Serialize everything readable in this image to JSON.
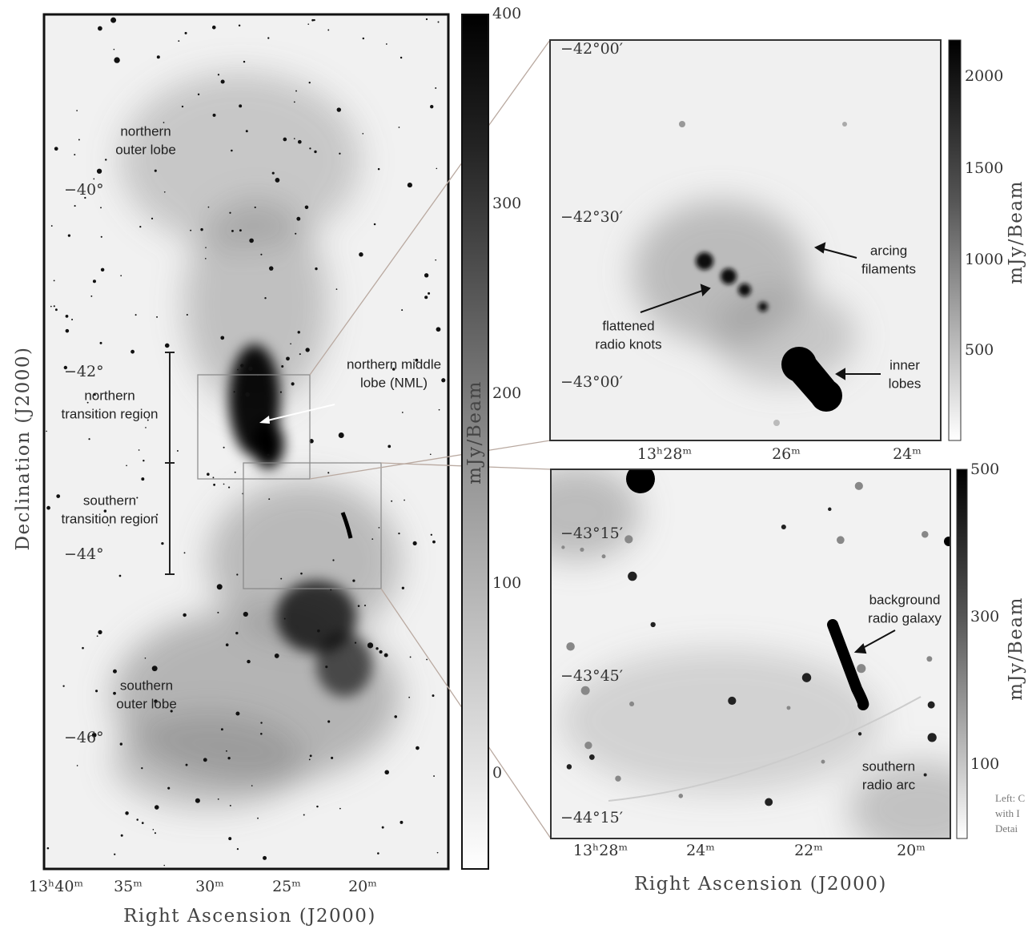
{
  "left_panel": {
    "y_label": "Declination (J2000)",
    "x_label": "Right Ascension (J2000)",
    "x_ticks": [
      "13ʰ40ᵐ",
      "35ᵐ",
      "30ᵐ",
      "25ᵐ",
      "20ᵐ"
    ],
    "y_ticks": [
      "−40°",
      "−42°",
      "−44°",
      "−46°"
    ],
    "annotations": [
      {
        "lines": [
          "northern",
          "outer lobe"
        ]
      },
      {
        "lines": [
          "northern middle",
          "lobe (NML)"
        ]
      },
      {
        "lines": [
          "northern",
          "transition region"
        ]
      },
      {
        "lines": [
          "southern",
          "transition region"
        ]
      },
      {
        "lines": [
          "southern",
          "outer lobe"
        ]
      }
    ],
    "colorbar": {
      "label": "mJy/Beam",
      "ticks": [
        400,
        300,
        200,
        100,
        0
      ]
    }
  },
  "top_right_panel": {
    "x_ticks": [
      "13ʰ28ᵐ",
      "26ᵐ",
      "24ᵐ"
    ],
    "y_ticks": [
      "−42°00′",
      "−42°30′",
      "−43°00′"
    ],
    "annotations": [
      {
        "lines": [
          "arcing",
          "filaments"
        ]
      },
      {
        "lines": [
          "flattened",
          "radio knots"
        ]
      },
      {
        "lines": [
          "inner",
          "lobes"
        ]
      }
    ],
    "colorbar": {
      "label": "mJy/Beam",
      "ticks": [
        2000,
        1500,
        1000,
        500
      ]
    }
  },
  "bottom_right_panel": {
    "x_label": "Right Ascension (J2000)",
    "x_ticks": [
      "13ʰ28ᵐ",
      "24ᵐ",
      "22ᵐ",
      "20ᵐ"
    ],
    "y_ticks": [
      "−43°15′",
      "−43°45′",
      "−44°15′"
    ],
    "annotations": [
      {
        "lines": [
          "background",
          "radio galaxy"
        ]
      },
      {
        "lines": [
          "southern",
          "radio arc"
        ]
      }
    ],
    "colorbar": {
      "label": "mJy/Beam",
      "ticks": [
        500,
        300,
        100
      ]
    }
  },
  "caption": {
    "lines": [
      "Left: C",
      "with I",
      "Detai"
    ]
  }
}
